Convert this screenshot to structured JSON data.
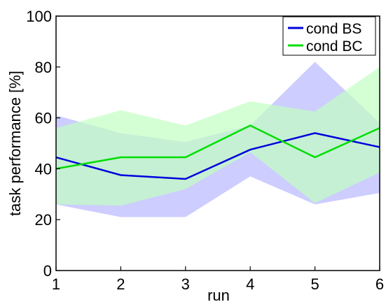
{
  "chart_data": {
    "type": "line",
    "title": "",
    "xlabel": "run",
    "ylabel": "task performance [%]",
    "x": [
      1,
      2,
      3,
      4,
      5,
      6
    ],
    "xlim": [
      1,
      6
    ],
    "ylim": [
      0,
      100
    ],
    "xticks": [
      "1",
      "2",
      "3",
      "4",
      "5",
      "6"
    ],
    "yticks": [
      "0",
      "20",
      "40",
      "60",
      "80",
      "100"
    ],
    "grid": false,
    "legend_position": "top-right",
    "series": [
      {
        "name": "cond BS",
        "color": "#0000dd",
        "band_color": "#b8b8ff",
        "values": [
          44.5,
          37.5,
          36,
          47.5,
          54,
          48.5
        ],
        "upper": [
          61,
          54,
          50.5,
          57,
          82,
          58
        ],
        "lower": [
          26,
          21,
          21,
          37,
          26,
          30.5
        ]
      },
      {
        "name": "cond BC",
        "color": "#00dd00",
        "band_color": "#c2ffc2",
        "values": [
          40,
          44.5,
          44.5,
          57,
          44.5,
          56
        ],
        "upper": [
          56,
          63,
          57,
          66.5,
          62.5,
          80
        ],
        "lower": [
          26,
          25.5,
          32,
          46.5,
          26.5,
          38.5
        ]
      }
    ]
  }
}
